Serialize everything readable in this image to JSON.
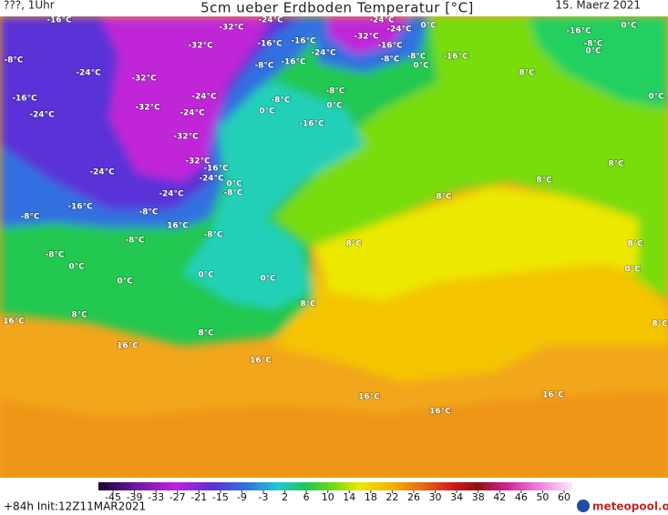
{
  "header": {
    "left": "???, 1Uhr",
    "title": "5cm ueber Erdboden Temperatur [°C]",
    "date": "15. Maerz 2021"
  },
  "map_labels": [
    "-16°C",
    "-24°C",
    "-24°C",
    "0°C",
    "-32°C",
    "-32°C",
    "-24°C",
    "-16°C",
    "0°C",
    "-32°C",
    "-16°C",
    "-16°C",
    "-16°C",
    "-8°C",
    "0°C",
    "-8°C",
    "-24°C",
    "-8°C",
    "-8°C",
    "-16°C",
    "0°C",
    "-8°C",
    "-16°C",
    "-24°C",
    "-32°C",
    "8°C",
    "-8°C",
    "-16°C",
    "-24°C",
    "-8°C",
    "0°C",
    "-32°C",
    "0°C",
    "0°C",
    "-24°C",
    "-24°C",
    "-16°C",
    "-32°C",
    "-32°C",
    "-16°C",
    "8°C",
    "-24°C",
    "-24°C",
    "0°C",
    "8°C",
    "-24°C",
    "-8°C",
    "8°C",
    "-16°C",
    "-8°C",
    "-8°C",
    "16°C",
    "-8°C",
    "-8°C",
    "8°C",
    "8°C",
    "-8°C",
    "0°C",
    "0°C",
    "0°C",
    "0°C",
    "0°C",
    "8°C",
    "8°C",
    "16°C",
    "8°C",
    "8°C",
    "16°C",
    "16°C",
    "16°C",
    "16°C",
    "16°C"
  ],
  "colorbar": {
    "ticks": [
      -45,
      -39,
      -33,
      -27,
      -21,
      -15,
      -9,
      -3,
      2,
      6,
      10,
      14,
      18,
      22,
      26,
      30,
      34,
      38,
      42,
      46,
      50,
      60
    ]
  },
  "footer": {
    "run": "+84h Init:12Z11MAR2021",
    "logo": "meteopool.org"
  }
}
